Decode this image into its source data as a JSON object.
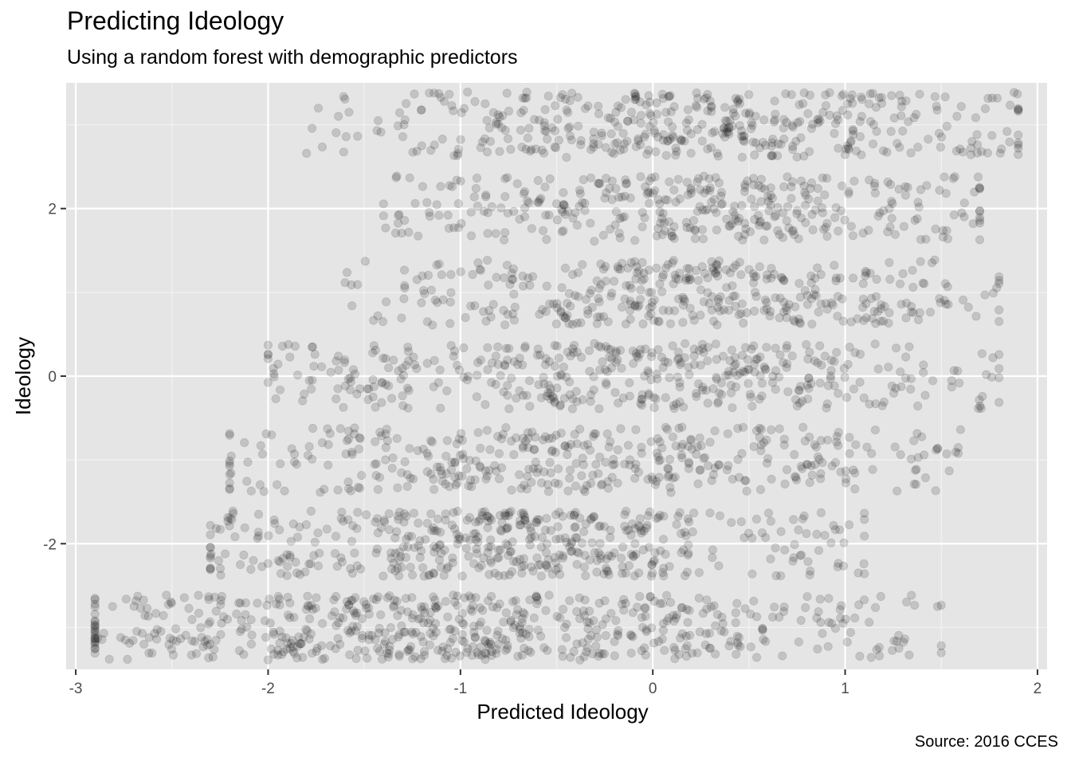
{
  "chart_data": {
    "type": "scatter",
    "title": "Predicting Ideology",
    "subtitle": "Using a random forest with demographic predictors",
    "caption": "Source: 2016 CCES",
    "xlabel": "Predicted Ideology",
    "ylabel": "Ideology",
    "xlim": [
      -3.05,
      2.05
    ],
    "ylim": [
      -3.5,
      3.5
    ],
    "x_ticks": [
      -3,
      -2,
      -1,
      0,
      1,
      2
    ],
    "y_ticks": [
      -2,
      0,
      2
    ],
    "grid": true,
    "background": "#e5e5e5",
    "point_color": "#000000",
    "point_alpha": 0.15,
    "jitter": "vertical jitter around integer ideology levels -3 to 3",
    "series": [
      {
        "levels": [
          {
            "y": -3,
            "x_min": -2.9,
            "x_max": 1.5,
            "n": 620
          },
          {
            "y": -2,
            "x_min": -2.3,
            "x_max": 1.1,
            "n": 470
          },
          {
            "y": -1,
            "x_min": -2.2,
            "x_max": 1.6,
            "n": 400
          },
          {
            "y": 0,
            "x_min": -2.0,
            "x_max": 1.8,
            "n": 430
          },
          {
            "y": 1,
            "x_min": -1.6,
            "x_max": 1.8,
            "n": 380
          },
          {
            "y": 2,
            "x_min": -1.4,
            "x_max": 1.7,
            "n": 360
          },
          {
            "y": 3,
            "x_min": -1.8,
            "x_max": 1.9,
            "n": 430
          }
        ]
      }
    ]
  }
}
